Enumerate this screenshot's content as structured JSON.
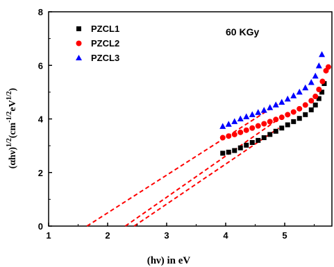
{
  "chart_data": {
    "type": "scatter",
    "annotation": "60 KGy",
    "xlabel": "(hν) in eV",
    "ylabel_main": "(αhν)",
    "ylabel_exp1": "1/2",
    "ylabel_unit": "(cm",
    "ylabel_exp2": "-1/2",
    "ylabel_ev": "eV",
    "ylabel_exp3": "1/2",
    "ylabel_close": ")",
    "xlim": [
      1,
      5.8
    ],
    "ylim": [
      0,
      8
    ],
    "xticks": [
      1,
      2,
      3,
      4,
      5
    ],
    "yticks": [
      0,
      2,
      4,
      6,
      8
    ],
    "legend_position": "top-left",
    "series": [
      {
        "name": "PZCL1",
        "marker": "square",
        "color": "#000000",
        "x": [
          3.95,
          4.05,
          4.15,
          4.25,
          4.35,
          4.45,
          4.55,
          4.65,
          4.75,
          4.85,
          4.95,
          5.05,
          5.15,
          5.25,
          5.35,
          5.45,
          5.52,
          5.58,
          5.63,
          5.67
        ],
        "y": [
          2.72,
          2.76,
          2.82,
          2.92,
          3.02,
          3.12,
          3.2,
          3.3,
          3.42,
          3.54,
          3.66,
          3.78,
          3.9,
          4.02,
          4.16,
          4.34,
          4.52,
          4.76,
          5.0,
          5.32
        ],
        "fit": {
          "x0": 2.45,
          "x1": 4.9,
          "y1": 3.66
        }
      },
      {
        "name": "PZCL2",
        "marker": "circle",
        "color": "#ff0000",
        "x": [
          3.95,
          4.05,
          4.15,
          4.25,
          4.35,
          4.45,
          4.55,
          4.65,
          4.75,
          4.85,
          4.95,
          5.05,
          5.15,
          5.25,
          5.35,
          5.45,
          5.52,
          5.58,
          5.64,
          5.7,
          5.74
        ],
        "y": [
          3.3,
          3.36,
          3.42,
          3.5,
          3.58,
          3.66,
          3.74,
          3.82,
          3.9,
          3.98,
          4.06,
          4.16,
          4.26,
          4.38,
          4.52,
          4.68,
          4.84,
          5.1,
          5.4,
          5.8,
          5.94
        ],
        "fit": {
          "x0": 2.3,
          "x1": 4.9,
          "y1": 4.0
        }
      },
      {
        "name": "PZCL3",
        "marker": "triangle",
        "color": "#0000ff",
        "x": [
          3.95,
          4.05,
          4.15,
          4.25,
          4.35,
          4.45,
          4.55,
          4.65,
          4.75,
          4.85,
          4.95,
          5.05,
          5.15,
          5.25,
          5.35,
          5.45,
          5.52,
          5.58,
          5.63
        ],
        "y": [
          3.72,
          3.8,
          3.9,
          4.0,
          4.08,
          4.16,
          4.24,
          4.32,
          4.42,
          4.52,
          4.62,
          4.74,
          4.86,
          5.0,
          5.16,
          5.36,
          5.6,
          5.98,
          6.4
        ],
        "fit": {
          "x0": 1.65,
          "x1": 4.9,
          "y1": 4.58
        }
      }
    ]
  }
}
